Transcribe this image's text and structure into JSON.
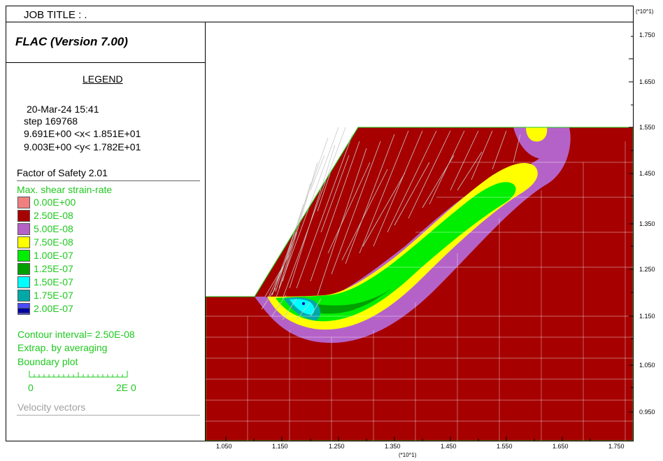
{
  "header": {
    "job_title": "JOB TITLE : ."
  },
  "panel": {
    "program": "FLAC (Version 7.00)",
    "legend_heading": "LEGEND",
    "date_time": "20-Mar-24  15:41",
    "step": "step   169768",
    "x_range": "9.691E+00 <x<  1.851E+01",
    "y_range": "9.003E+00 <y<  1.782E+01",
    "factor_of_safety": "Factor of Safety  2.01",
    "contour_title": "Max. shear strain-rate",
    "contour_levels": [
      {
        "label": "0.00E+00",
        "color": "#f08080"
      },
      {
        "label": "2.50E-08",
        "color": "#a60000"
      },
      {
        "label": "5.00E-08",
        "color": "#b562c8"
      },
      {
        "label": "7.50E-08",
        "color": "#ffff00"
      },
      {
        "label": "1.00E-07",
        "color": "#00ee00"
      },
      {
        "label": "1.25E-07",
        "color": "#00a000"
      },
      {
        "label": "1.50E-07",
        "color": "#00ffff"
      },
      {
        "label": "1.75E-07",
        "color": "#00a8a8"
      },
      {
        "label": "2.00E-07",
        "color": "#4a4aff"
      },
      {
        "label": "",
        "color": "#0000a0"
      }
    ],
    "contour_interval": "Contour interval=  2.50E-08",
    "extrap": "Extrap. by averaging",
    "boundary": "Boundary plot",
    "scale_start": "0",
    "scale_end": "2E  0",
    "velocity": "Velocity vectors"
  },
  "axes": {
    "y_multiplier": "(*10^1)",
    "x_multiplier": "(*10^1)",
    "y_ticks": [
      "1.750",
      "1.650",
      "1.550",
      "1.450",
      "1.350",
      "1.250",
      "1.150",
      "1.050",
      "0.950"
    ],
    "x_ticks": [
      "1.050",
      "1.150",
      "1.250",
      "1.350",
      "1.450",
      "1.550",
      "1.650",
      "1.750"
    ]
  },
  "colors": {
    "soil": "#a60000",
    "purple": "#b562c8",
    "yellow": "#ffff00",
    "green": "#00ee00",
    "dark_green": "#00a000",
    "cyan": "#00ffff",
    "teal": "#00a8a8",
    "legend_text": "#1ec81e"
  }
}
